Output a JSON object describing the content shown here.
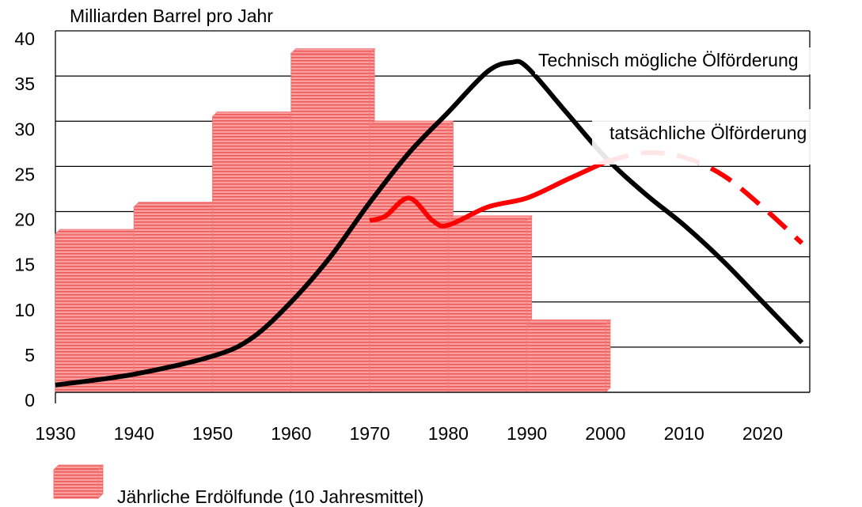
{
  "chart_data": {
    "type": "combo",
    "ylabel": "Milliarden Barrel pro Jahr",
    "xlim": [
      1930,
      2026
    ],
    "xticks": [
      1930,
      1940,
      1950,
      1960,
      1970,
      1980,
      1990,
      2000,
      2010,
      2020
    ],
    "ylim": [
      0,
      40
    ],
    "yticks": [
      0,
      5,
      10,
      15,
      20,
      25,
      30,
      35,
      40
    ],
    "grid": true,
    "bars": {
      "type": "histogram",
      "name": "Jährliche Erdölfunde (10 Jahresmittel)",
      "color": "#f47a7a",
      "bins": [
        1930,
        1940,
        1950,
        1960,
        1970,
        1980,
        1990,
        2000
      ],
      "values": [
        17.5,
        20.5,
        30.5,
        37.5,
        29.5,
        19,
        7.5
      ]
    },
    "series": [
      {
        "type": "line",
        "name": "Technisch mögliche Ölförderung",
        "color": "#000000",
        "x": [
          1930,
          1940,
          1950,
          1955,
          1960,
          1965,
          1970,
          1975,
          1980,
          1985,
          1988,
          1990,
          1995,
          2000,
          2005,
          2010,
          2015,
          2020,
          2025
        ],
        "values": [
          0.8,
          2,
          4,
          6,
          10,
          15,
          21,
          26.5,
          31,
          35.5,
          36.5,
          36,
          31,
          26,
          22,
          18.5,
          14.5,
          10,
          5.5
        ]
      },
      {
        "type": "line",
        "name": "tatsächliche Ölförderung",
        "color": "#ff0000",
        "dashed_from": 2000,
        "x": [
          1970,
          1972,
          1975,
          1978,
          1980,
          1985,
          1990,
          1995,
          2000,
          2005,
          2010,
          2015,
          2020,
          2025
        ],
        "values": [
          19,
          19.5,
          21.5,
          19,
          18.5,
          20.5,
          21.5,
          23.5,
          25.5,
          26.5,
          26,
          24,
          20.5,
          16.5
        ]
      }
    ]
  }
}
